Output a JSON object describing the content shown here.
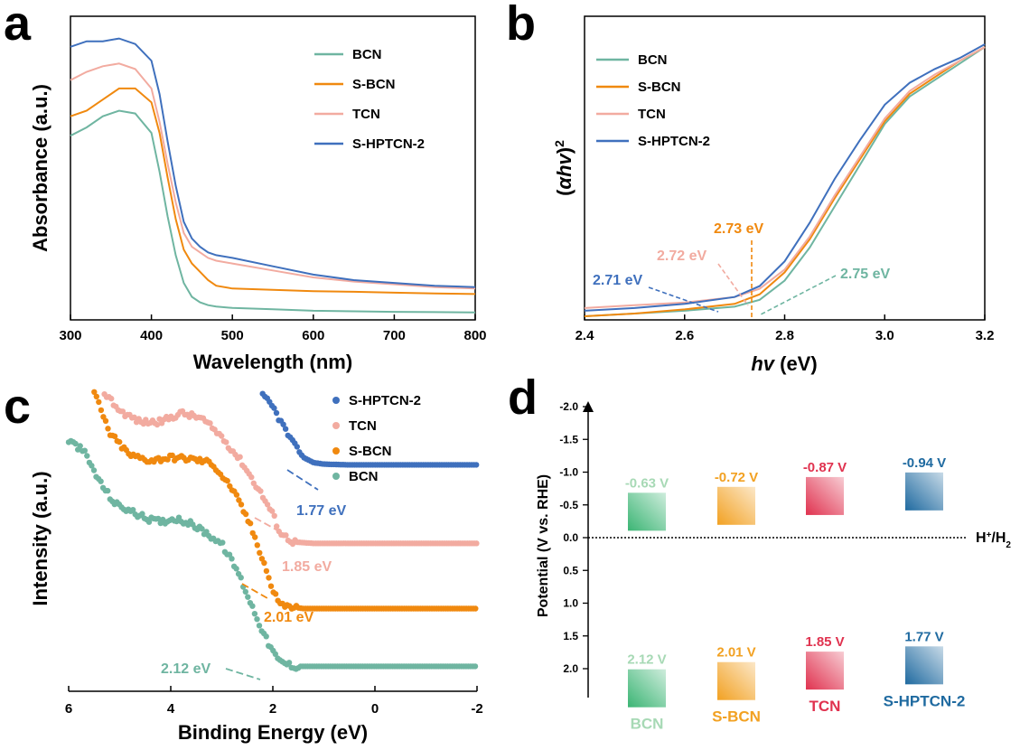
{
  "colors": {
    "BCN": "#6fb5a1",
    "S-BCN": "#f0890f",
    "TCN": "#f2aba0",
    "S-HPTCN-2": "#3f70bd",
    "d_BCN": "#3bb574",
    "d_SBCN": "#f2a122",
    "d_TCN": "#e0324f",
    "d_SHPTCN": "#1f6aa0",
    "d_BCN_text": "#a7d9b5"
  },
  "chart_data": [
    {
      "panel": "a",
      "type": "line",
      "xlabel": "Wavelength (nm)",
      "ylabel": "Absorbance (a.u.)",
      "xlim": [
        300,
        800
      ],
      "xticks": [
        "300",
        "400",
        "500",
        "600",
        "700",
        "800"
      ],
      "legend_position": "top-right",
      "series": [
        {
          "name": "BCN",
          "color_key": "BCN",
          "x": [
            300,
            320,
            340,
            360,
            380,
            400,
            410,
            420,
            430,
            440,
            450,
            460,
            470,
            480,
            500,
            550,
            600,
            650,
            700,
            750,
            800
          ],
          "y": [
            0.65,
            0.68,
            0.72,
            0.74,
            0.73,
            0.66,
            0.52,
            0.36,
            0.22,
            0.12,
            0.07,
            0.05,
            0.04,
            0.035,
            0.03,
            0.025,
            0.02,
            0.018,
            0.016,
            0.015,
            0.014
          ]
        },
        {
          "name": "S-BCN",
          "color_key": "S-BCN",
          "x": [
            300,
            320,
            340,
            360,
            380,
            400,
            410,
            420,
            430,
            440,
            450,
            460,
            470,
            480,
            500,
            550,
            600,
            650,
            700,
            750,
            800
          ],
          "y": [
            0.72,
            0.74,
            0.78,
            0.82,
            0.82,
            0.77,
            0.66,
            0.5,
            0.35,
            0.24,
            0.19,
            0.16,
            0.13,
            0.11,
            0.1,
            0.095,
            0.09,
            0.088,
            0.085,
            0.082,
            0.08
          ]
        },
        {
          "name": "TCN",
          "color_key": "TCN",
          "x": [
            300,
            320,
            340,
            360,
            380,
            400,
            410,
            420,
            430,
            440,
            450,
            460,
            470,
            480,
            500,
            550,
            600,
            650,
            700,
            750,
            800
          ],
          "y": [
            0.85,
            0.88,
            0.9,
            0.91,
            0.89,
            0.82,
            0.7,
            0.55,
            0.41,
            0.3,
            0.25,
            0.23,
            0.21,
            0.2,
            0.19,
            0.165,
            0.14,
            0.125,
            0.115,
            0.105,
            0.1
          ]
        },
        {
          "name": "S-HPTCN-2",
          "color_key": "S-HPTCN-2",
          "x": [
            300,
            320,
            340,
            360,
            380,
            400,
            410,
            420,
            430,
            440,
            450,
            460,
            470,
            480,
            500,
            550,
            600,
            650,
            700,
            750,
            800
          ],
          "y": [
            0.97,
            0.99,
            0.99,
            1.0,
            0.98,
            0.92,
            0.8,
            0.63,
            0.47,
            0.34,
            0.28,
            0.25,
            0.23,
            0.22,
            0.21,
            0.18,
            0.15,
            0.13,
            0.12,
            0.11,
            0.105
          ]
        }
      ]
    },
    {
      "panel": "b",
      "type": "line",
      "xlabel_italic": "hv",
      "xlabel_unit": " (eV)",
      "ylabel_italic": "αhv",
      "ylabel_paren_open": "(",
      "ylabel_paren_close": ")",
      "ylabel_sup": "2",
      "xlim": [
        2.4,
        3.2
      ],
      "xticks": [
        "2.4",
        "2.6",
        "2.8",
        "3.0",
        "3.2"
      ],
      "legend_position": "top-left",
      "series": [
        {
          "name": "BCN",
          "color_key": "BCN",
          "x": [
            2.4,
            2.5,
            2.6,
            2.7,
            2.75,
            2.8,
            2.85,
            2.9,
            2.95,
            3.0,
            3.05,
            3.1,
            3.15,
            3.2
          ],
          "y": [
            0.0,
            0.01,
            0.02,
            0.035,
            0.06,
            0.13,
            0.25,
            0.4,
            0.55,
            0.7,
            0.8,
            0.86,
            0.92,
            0.98
          ]
        },
        {
          "name": "S-BCN",
          "color_key": "S-BCN",
          "x": [
            2.4,
            2.5,
            2.6,
            2.7,
            2.75,
            2.8,
            2.85,
            2.9,
            2.95,
            3.0,
            3.05,
            3.1,
            3.15,
            3.2
          ],
          "y": [
            0.0,
            0.01,
            0.025,
            0.045,
            0.08,
            0.16,
            0.28,
            0.43,
            0.57,
            0.71,
            0.81,
            0.87,
            0.93,
            0.98
          ]
        },
        {
          "name": "TCN",
          "color_key": "TCN",
          "x": [
            2.4,
            2.5,
            2.6,
            2.7,
            2.75,
            2.8,
            2.85,
            2.9,
            2.95,
            3.0,
            3.05,
            3.1,
            3.15,
            3.2
          ],
          "y": [
            0.03,
            0.04,
            0.05,
            0.07,
            0.1,
            0.17,
            0.29,
            0.44,
            0.58,
            0.72,
            0.82,
            0.88,
            0.93,
            0.98
          ]
        },
        {
          "name": "S-HPTCN-2",
          "color_key": "S-HPTCN-2",
          "x": [
            2.4,
            2.5,
            2.6,
            2.7,
            2.75,
            2.8,
            2.85,
            2.9,
            2.95,
            3.0,
            3.05,
            3.1,
            3.15,
            3.2
          ],
          "y": [
            0.02,
            0.03,
            0.045,
            0.07,
            0.11,
            0.2,
            0.34,
            0.5,
            0.64,
            0.77,
            0.85,
            0.9,
            0.94,
            0.99
          ]
        }
      ],
      "annotations": [
        {
          "text": "2.71 eV",
          "color_key": "S-HPTCN-2"
        },
        {
          "text": "2.72 eV",
          "color_key": "TCN"
        },
        {
          "text": "2.73 eV",
          "color_key": "S-BCN"
        },
        {
          "text": "2.75 eV",
          "color_key": "BCN"
        }
      ]
    },
    {
      "panel": "c",
      "type": "scatter",
      "xlabel": "Binding Energy (eV)",
      "ylabel": "Intensity (a.u.)",
      "xlim": [
        6,
        -2
      ],
      "xticks": [
        "6",
        "4",
        "2",
        "0",
        "-2"
      ],
      "legend_position": "top-right",
      "series": [
        {
          "name": "S-HPTCN-2",
          "color_key": "S-HPTCN-2",
          "x": [
            2.2,
            2.0,
            1.8,
            1.6,
            1.4,
            1.2,
            1.0,
            0.5,
            0.0,
            -0.5,
            -1.0,
            -1.5,
            -2.0
          ],
          "y": [
            3.95,
            3.8,
            3.55,
            3.3,
            3.12,
            3.05,
            3.03,
            3.02,
            3.02,
            3.02,
            3.02,
            3.02,
            3.02
          ]
        },
        {
          "name": "TCN",
          "color_key": "TCN",
          "x": [
            5.3,
            5.0,
            4.6,
            4.2,
            3.8,
            3.4,
            3.0,
            2.6,
            2.2,
            2.0,
            1.85,
            1.6,
            1.2,
            0.5,
            0.0,
            -1.0,
            -2.0
          ],
          "y": [
            4.0,
            3.75,
            3.6,
            3.6,
            3.72,
            3.65,
            3.4,
            3.05,
            2.6,
            2.35,
            2.1,
            1.98,
            1.96,
            1.96,
            1.96,
            1.96,
            1.96
          ]
        },
        {
          "name": "S-BCN",
          "color_key": "S-BCN",
          "x": [
            5.5,
            5.2,
            4.8,
            4.4,
            4.0,
            3.6,
            3.2,
            2.8,
            2.5,
            2.3,
            2.1,
            2.0,
            1.8,
            1.4,
            1.0,
            0.0,
            -1.0,
            -2.0
          ],
          "y": [
            4.0,
            3.45,
            3.15,
            3.08,
            3.12,
            3.1,
            3.05,
            2.7,
            2.3,
            1.95,
            1.55,
            1.3,
            1.12,
            1.08,
            1.08,
            1.08,
            1.08,
            1.08
          ]
        },
        {
          "name": "BCN",
          "color_key": "BCN",
          "x": [
            6.0,
            5.7,
            5.4,
            5.1,
            4.8,
            4.5,
            4.2,
            3.9,
            3.6,
            3.3,
            3.0,
            2.7,
            2.4,
            2.12,
            1.9,
            1.6,
            1.0,
            0.0,
            -1.0,
            -2.0
          ],
          "y": [
            3.35,
            3.2,
            2.8,
            2.5,
            2.4,
            2.3,
            2.25,
            2.3,
            2.22,
            2.1,
            1.95,
            1.6,
            1.1,
            0.65,
            0.38,
            0.3,
            0.3,
            0.3,
            0.3,
            0.3
          ]
        }
      ],
      "annotations": [
        {
          "text": "1.77 eV",
          "color_key": "S-HPTCN-2"
        },
        {
          "text": "1.85 eV",
          "color_key": "TCN"
        },
        {
          "text": "2.01 eV",
          "color_key": "S-BCN"
        },
        {
          "text": "2.12 eV",
          "color_key": "BCN"
        }
      ]
    },
    {
      "panel": "d",
      "type": "band-diagram",
      "ylabel": "Potential (V vs. RHE)",
      "ylim": [
        2.5,
        -2.2
      ],
      "yticks": [
        "-2.0",
        "-1.5",
        "-1.0",
        "-0.5",
        "0.0",
        "0.5",
        "1.0",
        "1.5",
        "2.0"
      ],
      "reference_label": "H",
      "reference_sup": "+",
      "reference_tail": "/H",
      "reference_sub": "2",
      "samples": [
        {
          "name": "BCN",
          "cb": -0.63,
          "vb": 2.12,
          "cb_label": "-0.63 V",
          "vb_label": "2.12 V",
          "color_key": "d_BCN",
          "text_key": "d_BCN_text"
        },
        {
          "name": "S-BCN",
          "cb": -0.72,
          "vb": 2.01,
          "cb_label": "-0.72 V",
          "vb_label": "2.01 V",
          "color_key": "d_SBCN",
          "text_key": "d_SBCN"
        },
        {
          "name": "TCN",
          "cb": -0.87,
          "vb": 1.85,
          "cb_label": "-0.87 V",
          "vb_label": "1.85 V",
          "color_key": "d_TCN",
          "text_key": "d_TCN"
        },
        {
          "name": "S-HPTCN-2",
          "cb": -0.94,
          "vb": 1.77,
          "cb_label": "-0.94 V",
          "vb_label": "1.77 V",
          "color_key": "d_SHPTCN",
          "text_key": "d_SHPTCN"
        }
      ]
    }
  ],
  "panel_letters": [
    "a",
    "b",
    "c",
    "d"
  ]
}
